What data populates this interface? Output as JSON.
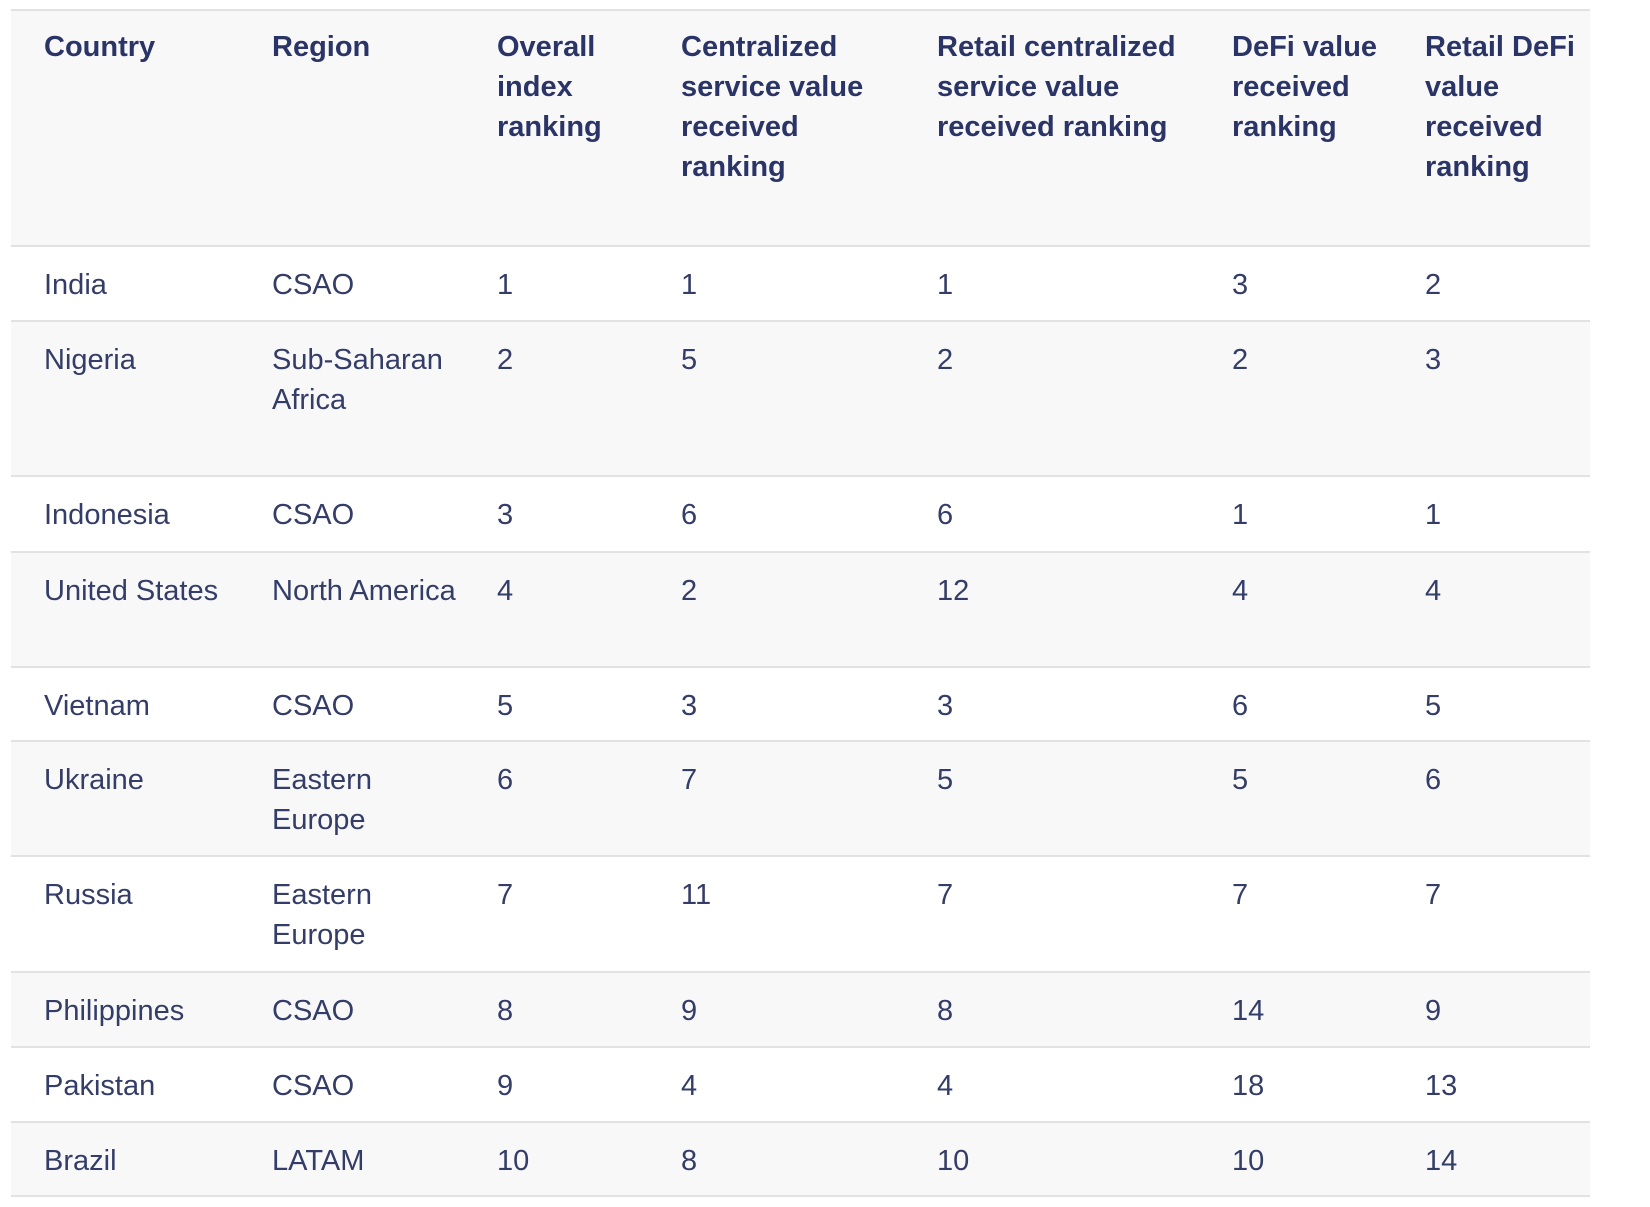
{
  "table": {
    "header": [
      "Country",
      "Region",
      "Overall index ranking",
      "Centralized service value received ranking",
      "Retail centralized service value received ranking",
      "DeFi value received ranking",
      "Retail DeFi value received ranking"
    ],
    "rows": [
      [
        "India",
        "CSAO",
        1,
        1,
        1,
        3,
        2
      ],
      [
        "Nigeria",
        "Sub-Saharan Africa",
        2,
        5,
        2,
        2,
        3
      ],
      [
        "Indonesia",
        "CSAO",
        3,
        6,
        6,
        1,
        1
      ],
      [
        "United States",
        "North America",
        4,
        2,
        12,
        4,
        4
      ],
      [
        "Vietnam",
        "CSAO",
        5,
        3,
        3,
        6,
        5
      ],
      [
        "Ukraine",
        "Eastern Europe",
        6,
        7,
        5,
        5,
        6
      ],
      [
        "Russia",
        "Eastern Europe",
        7,
        11,
        7,
        7,
        7
      ],
      [
        "Philippines",
        "CSAO",
        8,
        9,
        8,
        14,
        9
      ],
      [
        "Pakistan",
        "CSAO",
        9,
        4,
        4,
        18,
        13
      ],
      [
        "Brazil",
        "LATAM",
        10,
        8,
        10,
        10,
        14
      ]
    ]
  }
}
